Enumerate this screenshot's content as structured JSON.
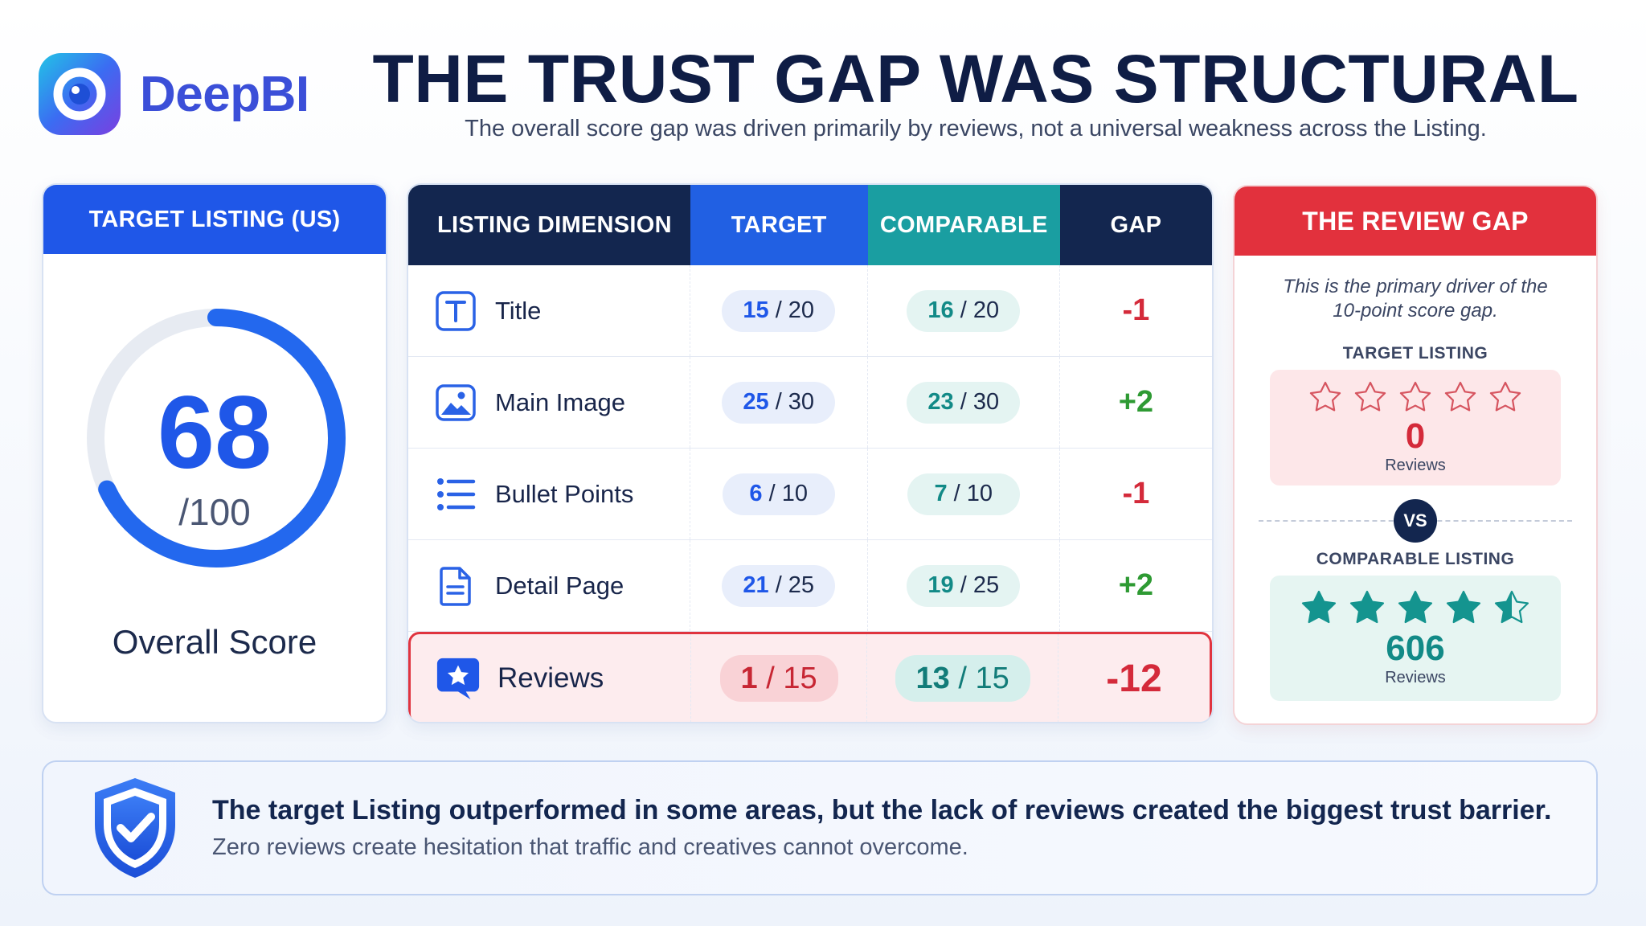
{
  "brand": {
    "name": "DeepBI",
    "logo_icon": "deepbi-logo-icon"
  },
  "header": {
    "title": "THE TRUST GAP WAS STRUCTURAL",
    "subtitle": "The overall score gap was driven primarily by reviews, not a universal weakness across the Listing."
  },
  "score_card": {
    "heading": "TARGET LISTING (US)",
    "value": "68",
    "max": "/100",
    "progress_fraction": 0.68,
    "label": "Overall Score",
    "accent": "#1f57e8"
  },
  "table": {
    "headers": {
      "dimension": "LISTING DIMENSION",
      "target": "TARGET",
      "comparable": "COMPARABLE",
      "gap": "GAP"
    },
    "rows": [
      {
        "icon": "title-text-icon",
        "label": "Title",
        "target_score": "15",
        "target_max": "/ 20",
        "comp_score": "16",
        "comp_max": "/ 20",
        "gap": "-1",
        "gap_sign": "neg"
      },
      {
        "icon": "image-icon",
        "label": "Main Image",
        "target_score": "25",
        "target_max": "/ 30",
        "comp_score": "23",
        "comp_max": "/ 30",
        "gap": "+2",
        "gap_sign": "pos"
      },
      {
        "icon": "bullet-list-icon",
        "label": "Bullet Points",
        "target_score": "6",
        "target_max": "/ 10",
        "comp_score": "7",
        "comp_max": "/ 10",
        "gap": "-1",
        "gap_sign": "neg"
      },
      {
        "icon": "document-icon",
        "label": "Detail Page",
        "target_score": "21",
        "target_max": "/ 25",
        "comp_score": "19",
        "comp_max": "/ 25",
        "gap": "+2",
        "gap_sign": "pos"
      },
      {
        "icon": "review-star-icon",
        "label": "Reviews",
        "target_score": "1",
        "target_max": "/ 15",
        "comp_score": "13",
        "comp_max": "/ 15",
        "gap": "-12",
        "gap_sign": "neg",
        "highlight": true
      }
    ]
  },
  "review_gap": {
    "heading": "THE REVIEW GAP",
    "note": "This is the primary driver of the 10-point score gap.",
    "target": {
      "label": "TARGET LISTING",
      "rating_stars": 0,
      "count": "0",
      "caption": "Reviews"
    },
    "vs": "VS",
    "comparable": {
      "label": "COMPARABLE LISTING",
      "rating_stars": 4.5,
      "count": "606",
      "caption": "Reviews"
    }
  },
  "callout": {
    "icon": "shield-check-icon",
    "main": "The target Listing outperformed in some areas, but the lack of reviews created the biggest trust barrier.",
    "sub": "Zero reviews create hesitation that traffic and creatives cannot overcome."
  },
  "colors": {
    "blue": "#1f57e8",
    "teal": "#1a9ea1",
    "navy": "#13264f",
    "red": "#e2313d",
    "green": "#2e9a33"
  }
}
